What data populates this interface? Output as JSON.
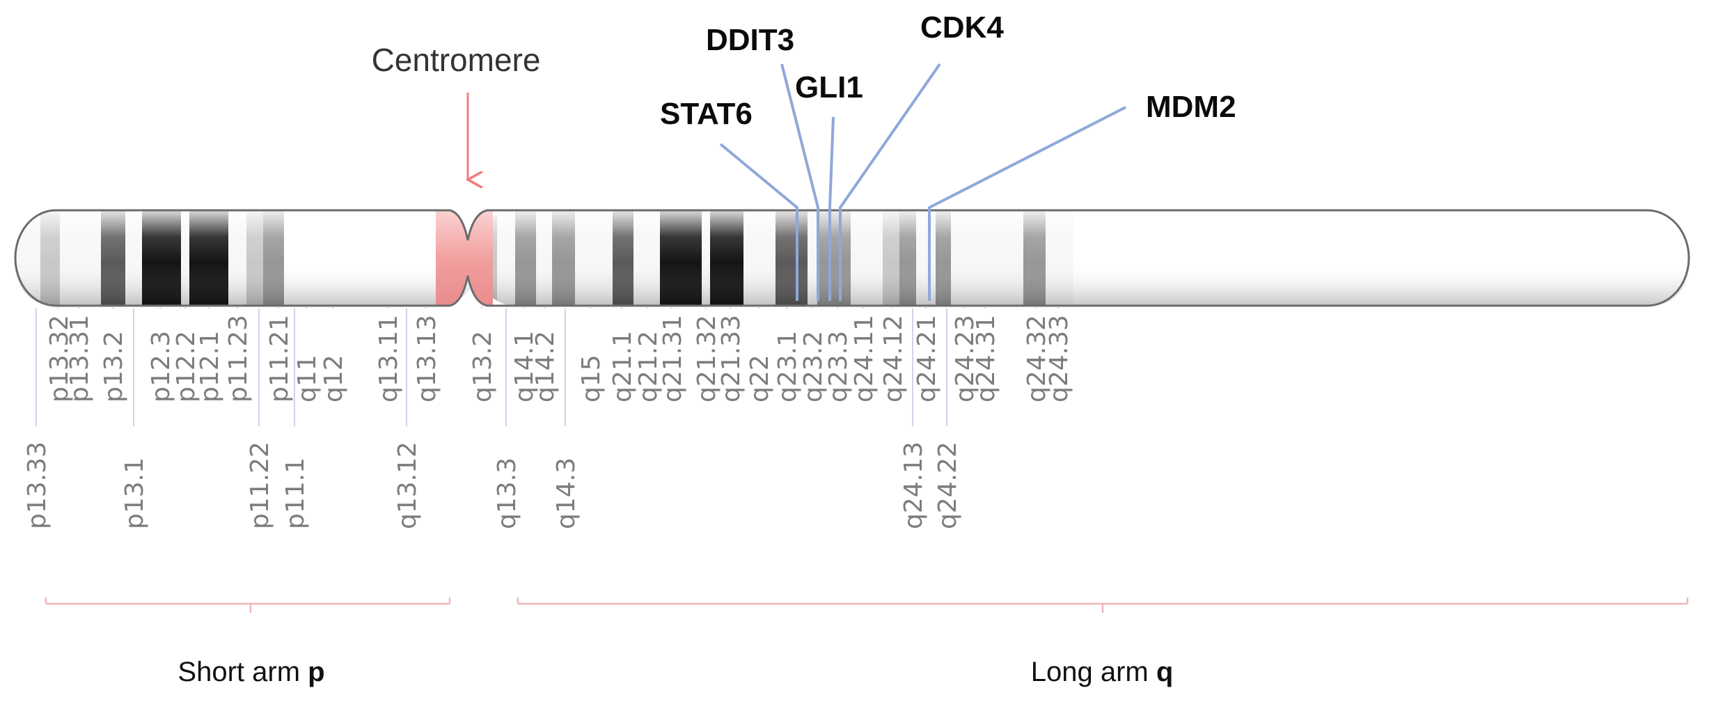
{
  "centromere_label": "Centromere",
  "colors": {
    "gene_line": "#8fa8d8",
    "centromere": "#f2a0a0",
    "centromere_arrow": "#f07e7e",
    "arm_bracket": "#eeb6b6",
    "tick": "#c3c7e8",
    "outline": "#6b6b6b",
    "band_label": "#7c7c7c"
  },
  "genes": [
    {
      "name": "DDIT3"
    },
    {
      "name": "STAT6"
    },
    {
      "name": "GLI1"
    },
    {
      "name": "CDK4"
    },
    {
      "name": "MDM2"
    }
  ],
  "bands": [
    {
      "label": "p13.33",
      "stain": "gneg"
    },
    {
      "label": "p13.32",
      "stain": "gpos25"
    },
    {
      "label": "p13.31",
      "stain": "gneg"
    },
    {
      "label": "p13.2",
      "stain": "gpos75"
    },
    {
      "label": "p13.1",
      "stain": "gneg"
    },
    {
      "label": "p12.3",
      "stain": "gpos100"
    },
    {
      "label": "p12.2",
      "stain": "gneg"
    },
    {
      "label": "p12.1",
      "stain": "gpos100"
    },
    {
      "label": "p11.23",
      "stain": "gneg"
    },
    {
      "label": "p11.22",
      "stain": "gpos25"
    },
    {
      "label": "p11.21",
      "stain": "gpos50"
    },
    {
      "label": "p11.1",
      "stain": "acen"
    },
    {
      "label": "q11",
      "stain": "acen"
    },
    {
      "label": "q12",
      "stain": "gpos100"
    },
    {
      "label": "q13.11",
      "stain": "gneg"
    },
    {
      "label": "q13.12",
      "stain": "gpos25"
    },
    {
      "label": "q13.13",
      "stain": "gneg"
    },
    {
      "label": "q13.2",
      "stain": "gpos25"
    },
    {
      "label": "q13.3",
      "stain": "gneg"
    },
    {
      "label": "q14.1",
      "stain": "gpos50"
    },
    {
      "label": "q14.2",
      "stain": "gneg"
    },
    {
      "label": "q14.3",
      "stain": "gpos50"
    },
    {
      "label": "q15",
      "stain": "gneg"
    },
    {
      "label": "q21.1",
      "stain": "gpos75"
    },
    {
      "label": "q21.2",
      "stain": "gneg"
    },
    {
      "label": "q21.31",
      "stain": "gpos100"
    },
    {
      "label": "q21.32",
      "stain": "gneg"
    },
    {
      "label": "q21.33",
      "stain": "gpos100"
    },
    {
      "label": "q22",
      "stain": "gneg"
    },
    {
      "label": "q23.1",
      "stain": "gpos75"
    },
    {
      "label": "q23.2",
      "stain": "gneg"
    },
    {
      "label": "q23.3",
      "stain": "gpos50"
    },
    {
      "label": "q24.11",
      "stain": "gneg"
    },
    {
      "label": "q24.12",
      "stain": "gpos25"
    },
    {
      "label": "q24.13",
      "stain": "gpos50"
    },
    {
      "label": "q24.21",
      "stain": "gneg"
    },
    {
      "label": "q24.22",
      "stain": "gpos50"
    },
    {
      "label": "q24.23",
      "stain": "gneg"
    },
    {
      "label": "q24.31",
      "stain": "gneg"
    },
    {
      "label": "q24.32",
      "stain": "gpos50"
    },
    {
      "label": "q24.33",
      "stain": "gneg"
    }
  ],
  "arms": {
    "short_prefix": "Short arm ",
    "short_letter": "p",
    "long_prefix": "Long arm ",
    "long_letter": "q"
  }
}
